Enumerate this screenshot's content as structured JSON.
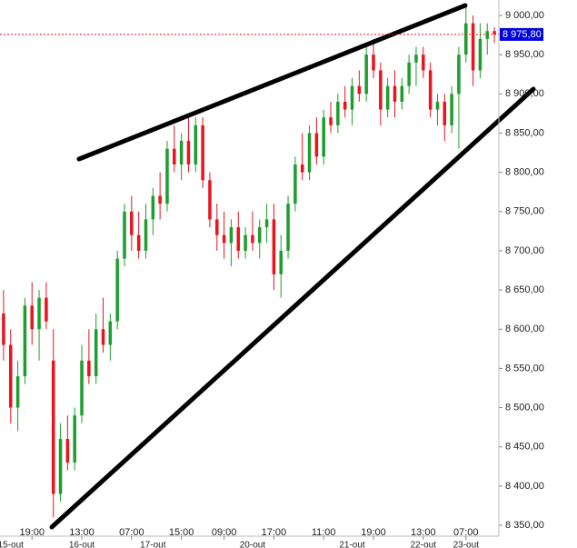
{
  "chart_data": {
    "type": "candlestick",
    "open": [
      8620,
      8580,
      8500,
      8540,
      8630,
      8600,
      8640,
      8560,
      8390,
      8460,
      8430,
      8490,
      8560,
      8540,
      8600,
      8580,
      8610,
      8690,
      8750,
      8720,
      8700,
      8740,
      8770,
      8760,
      8830,
      8810,
      8840,
      8810,
      8860,
      8790,
      8740,
      8720,
      8710,
      8730,
      8700,
      8720,
      8710,
      8730,
      8740,
      8670,
      8700,
      8760,
      8810,
      8800,
      8850,
      8820,
      8870,
      8860,
      8890,
      8880,
      8910,
      8900,
      8950,
      8930,
      8880,
      8910,
      8890,
      8910,
      8940,
      8950,
      8930,
      8880,
      8890,
      8860,
      8900,
      8950,
      8990,
      8930,
      8970,
      8980
    ],
    "high": [
      8650,
      8600,
      8560,
      8640,
      8660,
      8650,
      8660,
      8600,
      8480,
      8490,
      8500,
      8580,
      8600,
      8620,
      8640,
      8620,
      8700,
      8760,
      8770,
      8750,
      8760,
      8780,
      8800,
      8840,
      8860,
      8850,
      8870,
      8870,
      8870,
      8800,
      8760,
      8750,
      8740,
      8750,
      8730,
      8750,
      8740,
      8760,
      8760,
      8720,
      8770,
      8820,
      8850,
      8860,
      8870,
      8880,
      8890,
      8900,
      8910,
      8920,
      8930,
      8960,
      8970,
      8940,
      8920,
      8930,
      8920,
      8950,
      8960,
      8960,
      8940,
      8900,
      8900,
      8910,
      8960,
      9010,
      9000,
      8990,
      8990,
      8985
    ],
    "low": [
      8560,
      8480,
      8470,
      8530,
      8580,
      8560,
      8600,
      8360,
      8380,
      8420,
      8420,
      8480,
      8530,
      8530,
      8570,
      8560,
      8600,
      8680,
      8700,
      8690,
      8690,
      8720,
      8740,
      8750,
      8800,
      8790,
      8800,
      8800,
      8780,
      8730,
      8700,
      8690,
      8680,
      8690,
      8690,
      8700,
      8690,
      8710,
      8650,
      8640,
      8690,
      8750,
      8790,
      8790,
      8810,
      8810,
      8850,
      8850,
      8870,
      8860,
      8890,
      8890,
      8920,
      8860,
      8870,
      8870,
      8880,
      8900,
      8910,
      8920,
      8870,
      8860,
      8840,
      8850,
      8830,
      8940,
      8910,
      8920,
      8950,
      8965
    ],
    "close": [
      8580,
      8500,
      8540,
      8630,
      8600,
      8640,
      8610,
      8390,
      8460,
      8430,
      8490,
      8560,
      8540,
      8600,
      8580,
      8610,
      8690,
      8750,
      8720,
      8700,
      8740,
      8770,
      8760,
      8830,
      8810,
      8840,
      8810,
      8860,
      8790,
      8740,
      8720,
      8710,
      8730,
      8700,
      8720,
      8710,
      8730,
      8740,
      8670,
      8700,
      8760,
      8810,
      8800,
      8850,
      8820,
      8870,
      8860,
      8890,
      8880,
      8910,
      8900,
      8950,
      8930,
      8880,
      8910,
      8890,
      8910,
      8940,
      8950,
      8930,
      8880,
      8890,
      8860,
      8900,
      8950,
      8990,
      8930,
      8970,
      8980,
      8976
    ],
    "up_color": "#1e9e2e",
    "down_color": "#e8141e",
    "xlim": [
      -0.5,
      69.5
    ],
    "ylim": [
      8350,
      9000
    ],
    "yticks": [
      {
        "value": 8350,
        "label": "8 350,00"
      },
      {
        "value": 8400,
        "label": "8 400,00"
      },
      {
        "value": 8450,
        "label": "8 450,00"
      },
      {
        "value": 8500,
        "label": "8 500,00"
      },
      {
        "value": 8550,
        "label": "8 550,00"
      },
      {
        "value": 8600,
        "label": "8 600,00"
      },
      {
        "value": 8650,
        "label": "8 650,00"
      },
      {
        "value": 8700,
        "label": "8 700,00"
      },
      {
        "value": 8750,
        "label": "8 750,00"
      },
      {
        "value": 8800,
        "label": "8 800,00"
      },
      {
        "value": 8850,
        "label": "8 850,00"
      },
      {
        "value": 8900,
        "label": "8 900,00"
      },
      {
        "value": 8950,
        "label": "8 950,00"
      },
      {
        "value": 9000,
        "label": "9 000,00"
      }
    ],
    "xticks": [
      {
        "value": 4,
        "label": "19:00"
      },
      {
        "value": 11,
        "label": "13:00"
      },
      {
        "value": 18,
        "label": "07:00"
      },
      {
        "value": 25,
        "label": "15:00"
      },
      {
        "value": 31,
        "label": "09:00"
      },
      {
        "value": 38,
        "label": "17:00"
      },
      {
        "value": 45,
        "label": "11:00"
      },
      {
        "value": 52,
        "label": "19:00"
      },
      {
        "value": 59,
        "label": "13:00"
      },
      {
        "value": 65,
        "label": "07:00"
      }
    ],
    "date_ticks": [
      {
        "value": 1,
        "label": "15-out"
      },
      {
        "value": 11,
        "label": "16-out"
      },
      {
        "value": 21,
        "label": "17-out"
      },
      {
        "value": 35,
        "label": "20-out"
      },
      {
        "value": 49,
        "label": "21-out"
      },
      {
        "value": 59,
        "label": "22-out"
      },
      {
        "value": 65,
        "label": "23-out"
      }
    ],
    "current_price": {
      "value": 8975.8,
      "label": "8 975,80"
    },
    "current_price_color": "#0000dd"
  }
}
